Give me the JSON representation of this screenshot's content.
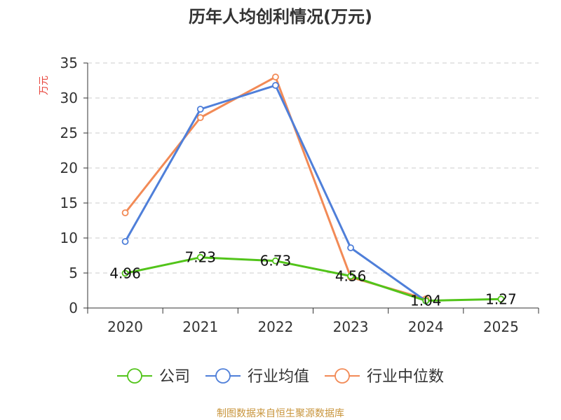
{
  "chart_data": {
    "type": "line",
    "title": "历年人均创利情况(万元)",
    "ylabel": "万元",
    "xlabel": "",
    "categories": [
      "2020",
      "2021",
      "2022",
      "2023",
      "2024",
      "2025"
    ],
    "ylim": [
      0,
      35
    ],
    "yticks": [
      0,
      5,
      10,
      15,
      20,
      25,
      30,
      35
    ],
    "grid": true,
    "legend_position": "bottom",
    "series": [
      {
        "name": "公司",
        "color": "#52c41a",
        "values": [
          4.96,
          7.23,
          6.73,
          4.56,
          1.04,
          1.27
        ],
        "labels": [
          "4.96",
          "7.23",
          "6.73",
          "4.56",
          "1.04",
          "1.27"
        ]
      },
      {
        "name": "行业均值",
        "color": "#4f7fd9",
        "values": [
          9.5,
          28.4,
          31.8,
          8.6,
          1.0,
          null
        ]
      },
      {
        "name": "行业中位数",
        "color": "#f28a56",
        "values": [
          13.6,
          27.2,
          33.0,
          4.4,
          1.3,
          null
        ]
      }
    ]
  },
  "footer": {
    "source": "制图数据来自恒生聚源数据库"
  }
}
